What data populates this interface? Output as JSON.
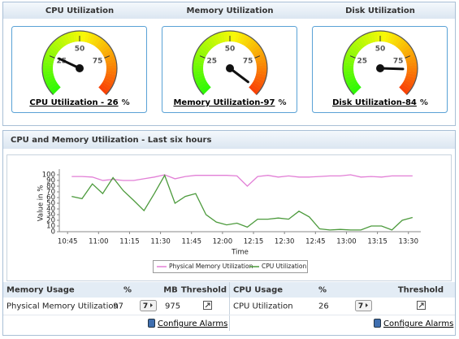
{
  "gauges": [
    {
      "title": "CPU Utilization",
      "label": "CPU Utilization - 26",
      "unit": "%",
      "value": 26,
      "range": [
        0,
        100
      ],
      "ticks": [
        25,
        50,
        75
      ]
    },
    {
      "title": "Memory Utilization",
      "label": "Memory Utilization-97",
      "unit": "%",
      "value": 97,
      "range": [
        0,
        100
      ],
      "ticks": [
        25,
        50,
        75
      ]
    },
    {
      "title": "Disk Utilization",
      "label": "Disk Utilization-84",
      "unit": "%",
      "value": 84,
      "range": [
        0,
        100
      ],
      "ticks": [
        25,
        50,
        75
      ]
    }
  ],
  "chart_data": {
    "type": "line",
    "title": "CPU and Memory Utilization - Last six hours",
    "y_label": "Value in %",
    "x_label": "Time",
    "x": [
      "10:47",
      "10:52",
      "10:57",
      "11:02",
      "11:07",
      "11:12",
      "11:17",
      "11:22",
      "11:27",
      "11:32",
      "11:37",
      "11:42",
      "11:47",
      "11:52",
      "11:57",
      "12:02",
      "12:07",
      "12:12",
      "12:17",
      "12:22",
      "12:27",
      "12:32",
      "12:37",
      "12:42",
      "12:47",
      "12:52",
      "12:57",
      "13:02",
      "13:07",
      "13:12",
      "13:17",
      "13:22",
      "13:27",
      "13:32"
    ],
    "xlim": [
      "10:41",
      "13:36"
    ],
    "xticks": [
      "10:45",
      "11:00",
      "11:15",
      "11:30",
      "11:45",
      "12:00",
      "12:15",
      "12:30",
      "12:45",
      "13:00",
      "13:15",
      "13:30"
    ],
    "ylim": [
      0,
      100
    ],
    "yticks": [
      0,
      10,
      20,
      30,
      40,
      50,
      60,
      70,
      80,
      90,
      100
    ],
    "series": [
      {
        "name": "Physical Memory Utilization",
        "color": "#e27fd6",
        "values": [
          97,
          97,
          96,
          90,
          92,
          90,
          90,
          93,
          96,
          100,
          93,
          97,
          99,
          99,
          99,
          99,
          98,
          80,
          97,
          99,
          96,
          98,
          96,
          96,
          97,
          98,
          98,
          100,
          96,
          97,
          96,
          98,
          98,
          98
        ]
      },
      {
        "name": "CPU Utilization",
        "color": "#4c9a3c",
        "values": [
          62,
          58,
          84,
          67,
          95,
          72,
          55,
          37,
          67,
          99,
          50,
          62,
          67,
          30,
          17,
          12,
          15,
          8,
          22,
          22,
          24,
          22,
          36,
          26,
          5,
          3,
          4,
          3,
          3,
          10,
          10,
          3,
          20,
          25
        ]
      }
    ]
  },
  "memory_table": {
    "headers": [
      "Memory Usage",
      "%",
      "MB",
      "Threshold"
    ],
    "row": [
      "Physical Memory Utilization",
      97,
      975
    ],
    "button": "7",
    "link": "Configure Alarms"
  },
  "cpu_table": {
    "headers": [
      "CPU Usage",
      "%",
      "Threshold"
    ],
    "row": [
      "CPU Utilization",
      26
    ],
    "button": "7",
    "link": "Configure Alarms"
  }
}
